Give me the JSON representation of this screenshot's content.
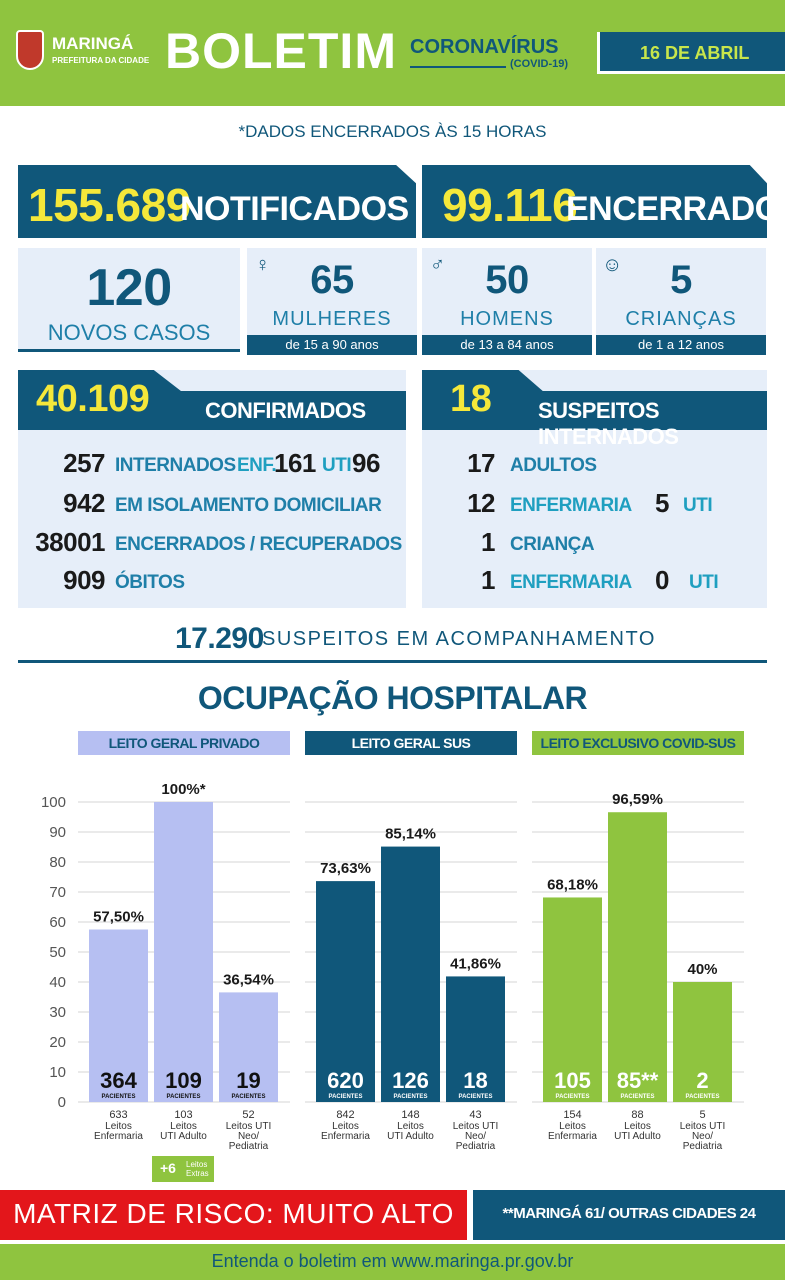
{
  "header": {
    "logo_name": "MARINGÁ",
    "logo_sub": "PREFEITURA DA CIDADE",
    "title": "BOLETIM",
    "subtitle": "CORONAVÍRUS",
    "subtitle2": "(COVID-19)",
    "date": "16 DE ABRIL"
  },
  "dados": "*DADOS ENCERRADOS ÀS 15 HORAS",
  "top": {
    "notificados_num": "155.689",
    "notificados_lbl": "NOTIFICADOS",
    "encerrados_num": "99.116",
    "encerrados_lbl": "ENCERRADOS"
  },
  "novos": {
    "num": "120",
    "lbl": "NOVOS CASOS"
  },
  "demo": [
    {
      "num": "65",
      "lbl": "MULHERES",
      "range": "de 15 a 90 anos",
      "icon": "woman-icon",
      "glyph": "♀"
    },
    {
      "num": "50",
      "lbl": "HOMENS",
      "range": "de 13 a 84 anos",
      "icon": "man-icon",
      "glyph": "♂"
    },
    {
      "num": "5",
      "lbl": "CRIANÇAS",
      "range": "de 1 a 12 anos",
      "icon": "child-icon",
      "glyph": "☺"
    }
  ],
  "confirmados": {
    "num": "40.109",
    "lbl": "CONFIRMADOS",
    "internados_num": "257",
    "internados_lbl": "INTERNADOS",
    "enf_lbl": "ENF.",
    "enf_num": "161",
    "uti_lbl": "UTI",
    "uti_num": "96",
    "isolamento_num": "942",
    "isolamento_lbl": "EM ISOLAMENTO DOMICILIAR",
    "recuperados_num": "38001",
    "recuperados_lbl": "ENCERRADOS / RECUPERADOS",
    "obitos_num": "909",
    "obitos_lbl": "ÓBITOS"
  },
  "suspeitos": {
    "num": "18",
    "lbl": "SUSPEITOS INTERNADOS",
    "adultos_num": "17",
    "adultos_lbl": "ADULTOS",
    "enf_num": "12",
    "enf_lbl": "ENFERMARIA",
    "uti_num": "5",
    "uti_lbl": "UTI",
    "crianca_num": "1",
    "crianca_lbl": "CRIANÇA",
    "c_enf_num": "1",
    "c_enf_lbl": "ENFERMARIA",
    "c_uti_num": "0",
    "c_uti_lbl": "UTI"
  },
  "acompanhamento": {
    "num": "17.290",
    "lbl": "SUSPEITOS EM ACOMPANHAMENTO"
  },
  "ocupacao_title": "OCUPAÇÃO HOSPITALAR",
  "categories": [
    {
      "name": "LEITO GERAL PRIVADO",
      "bg": "#b6bff2",
      "fg": "#10577a"
    },
    {
      "name": "LEITO GERAL SUS",
      "bg": "#10577a",
      "fg": "#ffffff"
    },
    {
      "name": "LEITO EXCLUSIVO COVID-SUS",
      "bg": "#8fc43f",
      "fg": "#10577a"
    }
  ],
  "chart_data": {
    "type": "bar",
    "ylim": [
      0,
      100
    ],
    "yticks": [
      "0",
      "10",
      "20",
      "30",
      "40",
      "50",
      "60",
      "70",
      "80",
      "90",
      "100"
    ],
    "grid": true,
    "pacientes_label": "PACIENTES",
    "groups": [
      {
        "name": "LEITO GERAL PRIVADO",
        "color": "#b6bff2",
        "bars": [
          {
            "value": 57.5,
            "label": "57,50%",
            "patients": "364",
            "beds": "633",
            "bed_type": "Leitos Enfermaria"
          },
          {
            "value": 100,
            "label": "100%*",
            "patients": "109",
            "beds": "103",
            "bed_type": "Leitos UTI Adulto"
          },
          {
            "value": 36.54,
            "label": "36,54%",
            "patients": "19",
            "beds": "52",
            "bed_type": "Leitos UTI Neo/ Pediatria"
          }
        ]
      },
      {
        "name": "LEITO GERAL SUS",
        "color": "#10577a",
        "bars": [
          {
            "value": 73.63,
            "label": "73,63%",
            "patients": "620",
            "beds": "842",
            "bed_type": "Leitos Enfermaria"
          },
          {
            "value": 85.14,
            "label": "85,14%",
            "patients": "126",
            "beds": "148",
            "bed_type": "Leitos UTI Adulto"
          },
          {
            "value": 41.86,
            "label": "41,86%",
            "patients": "18",
            "beds": "43",
            "bed_type": "Leitos UTI Neo/ Pediatria"
          }
        ]
      },
      {
        "name": "LEITO EXCLUSIVO COVID-SUS",
        "color": "#8fc43f",
        "bars": [
          {
            "value": 68.18,
            "label": "68,18%",
            "patients": "105",
            "beds": "154",
            "bed_type": "Leitos Enfermaria"
          },
          {
            "value": 96.59,
            "label": "96,59%",
            "patients": "85**",
            "beds": "88",
            "bed_type": "Leitos UTI Adulto"
          },
          {
            "value": 40,
            "label": "40%",
            "patients": "2",
            "beds": "5",
            "bed_type": "Leitos UTI Neo/ Pediatria"
          }
        ]
      }
    ]
  },
  "extras": {
    "num": "+6",
    "lbl": "Leitos Extras"
  },
  "risk": "MATRIZ DE RISCO: MUITO ALTO",
  "maringa_note": "**MARINGÁ 61/ OUTRAS CIDADES 24",
  "footer": "Entenda o boletim em www.maringa.pr.gov.br"
}
